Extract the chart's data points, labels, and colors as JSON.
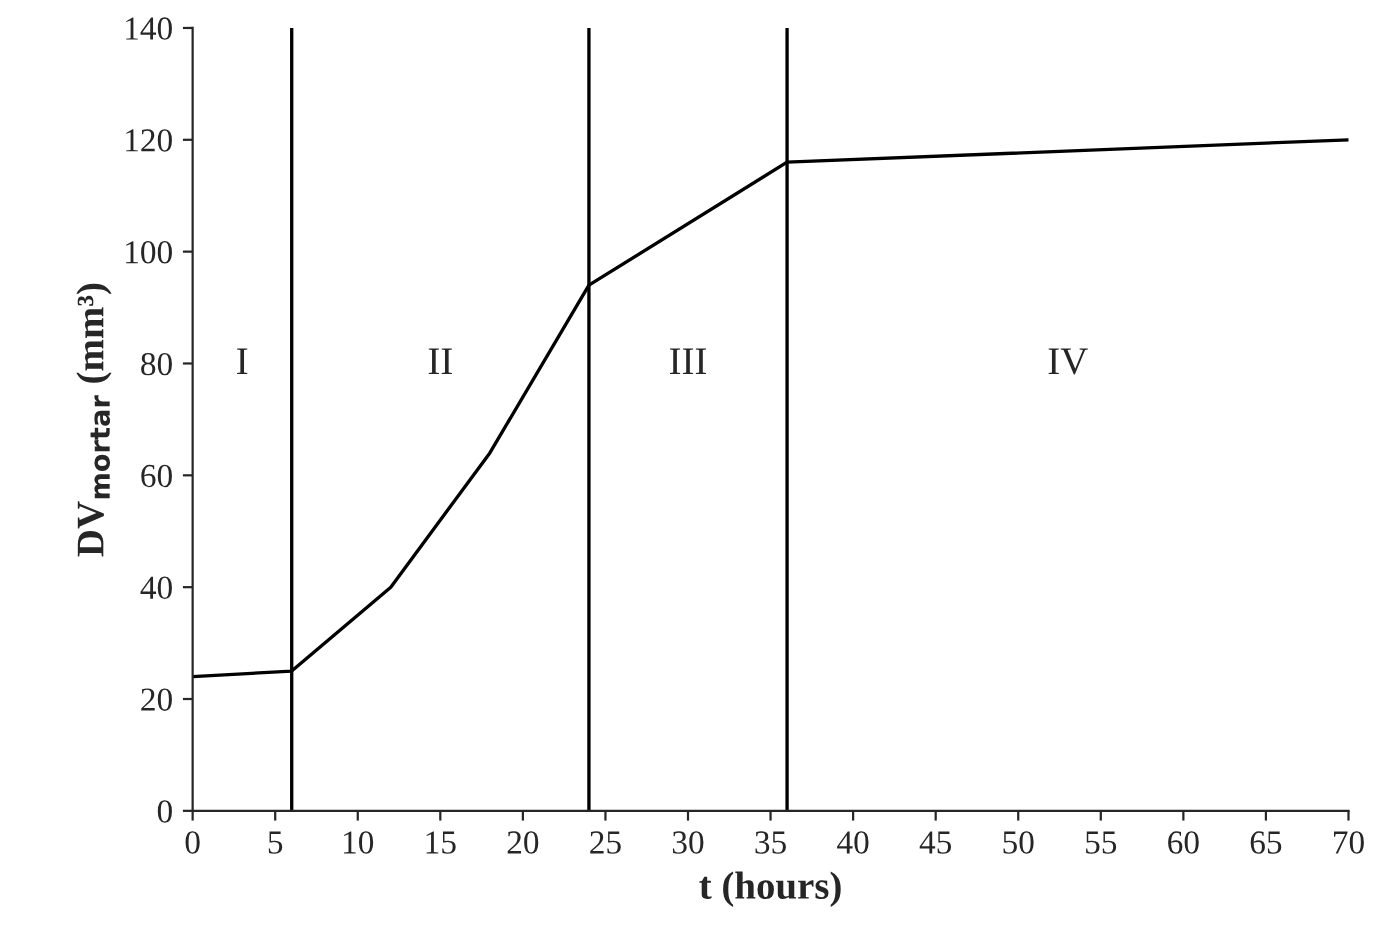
{
  "chart_data": {
    "type": "line",
    "xlabel": "t (hours)",
    "ylabel": "DV$_{mortar}$ (mm³)",
    "x": [
      0,
      6,
      12,
      18,
      24,
      36,
      70
    ],
    "series": [
      {
        "color": "#000000",
        "values": [
          24,
          25,
          40,
          64,
          94,
          116,
          120
        ]
      }
    ],
    "xlim": [
      0,
      70
    ],
    "xticks": [
      0,
      5,
      10,
      15,
      20,
      25,
      30,
      35,
      40,
      45,
      50,
      55,
      60,
      65,
      70
    ],
    "ylim": [
      0,
      140
    ],
    "yticks": [
      0,
      20,
      40,
      60,
      80,
      100,
      120,
      140
    ],
    "ref_lines": [
      {
        "axis": "x",
        "value": 6,
        "color": "#000000"
      },
      {
        "axis": "x",
        "value": 24,
        "color": "#000000"
      },
      {
        "axis": "x",
        "value": 36,
        "color": "#000000"
      }
    ],
    "annotations": [
      "I",
      "II",
      "III",
      "IV"
    ],
    "grid": false,
    "legend": false,
    "marker": "none",
    "line_style": "solid"
  }
}
